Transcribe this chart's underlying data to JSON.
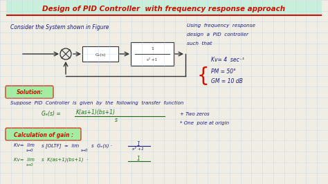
{
  "bg_color": "#f0ede4",
  "grid_color": "#b8cfe0",
  "title_text": "Design of PID Controller  with frequency response approach",
  "title_color": "#cc1100",
  "title_bg": "#b8f0d8",
  "line1": "Consider the System shown in Figure",
  "line1_color": "#1a1a7a",
  "right_lines": [
    "Using  frequency  response",
    "design  a  PID  controller",
    "such  that"
  ],
  "right_color": "#1a1a7a",
  "kv_text": "Kv= 4  sec⁻¹",
  "pm_text": "PM = 50°",
  "gm_text": "GM = 10 dB",
  "specs_color": "#1a1a7a",
  "brace_color": "#cc1100",
  "solution_text": "Solution:",
  "solution_color": "#cc1100",
  "solution_bg": "#90ee90",
  "suppose_text": "Suppose  PID  Controller  is  given  by  the  following  transfer  function",
  "suppose_color": "#1a1a7a",
  "gc_color": "#1a6a1a",
  "annotation1": "+ Two zeros",
  "annotation2": "* One  pole at origin",
  "annotation_color": "#1a1a7a",
  "calc_text": "Calculation of gain :",
  "calc_color": "#cc1100",
  "calc_bg": "#90ee90",
  "kv_eq1_color": "#1a1a7a",
  "kv_eq2_color": "#1a6a1a",
  "box_color": "#333333",
  "figsize": [
    4.74,
    2.66
  ],
  "dpi": 100
}
